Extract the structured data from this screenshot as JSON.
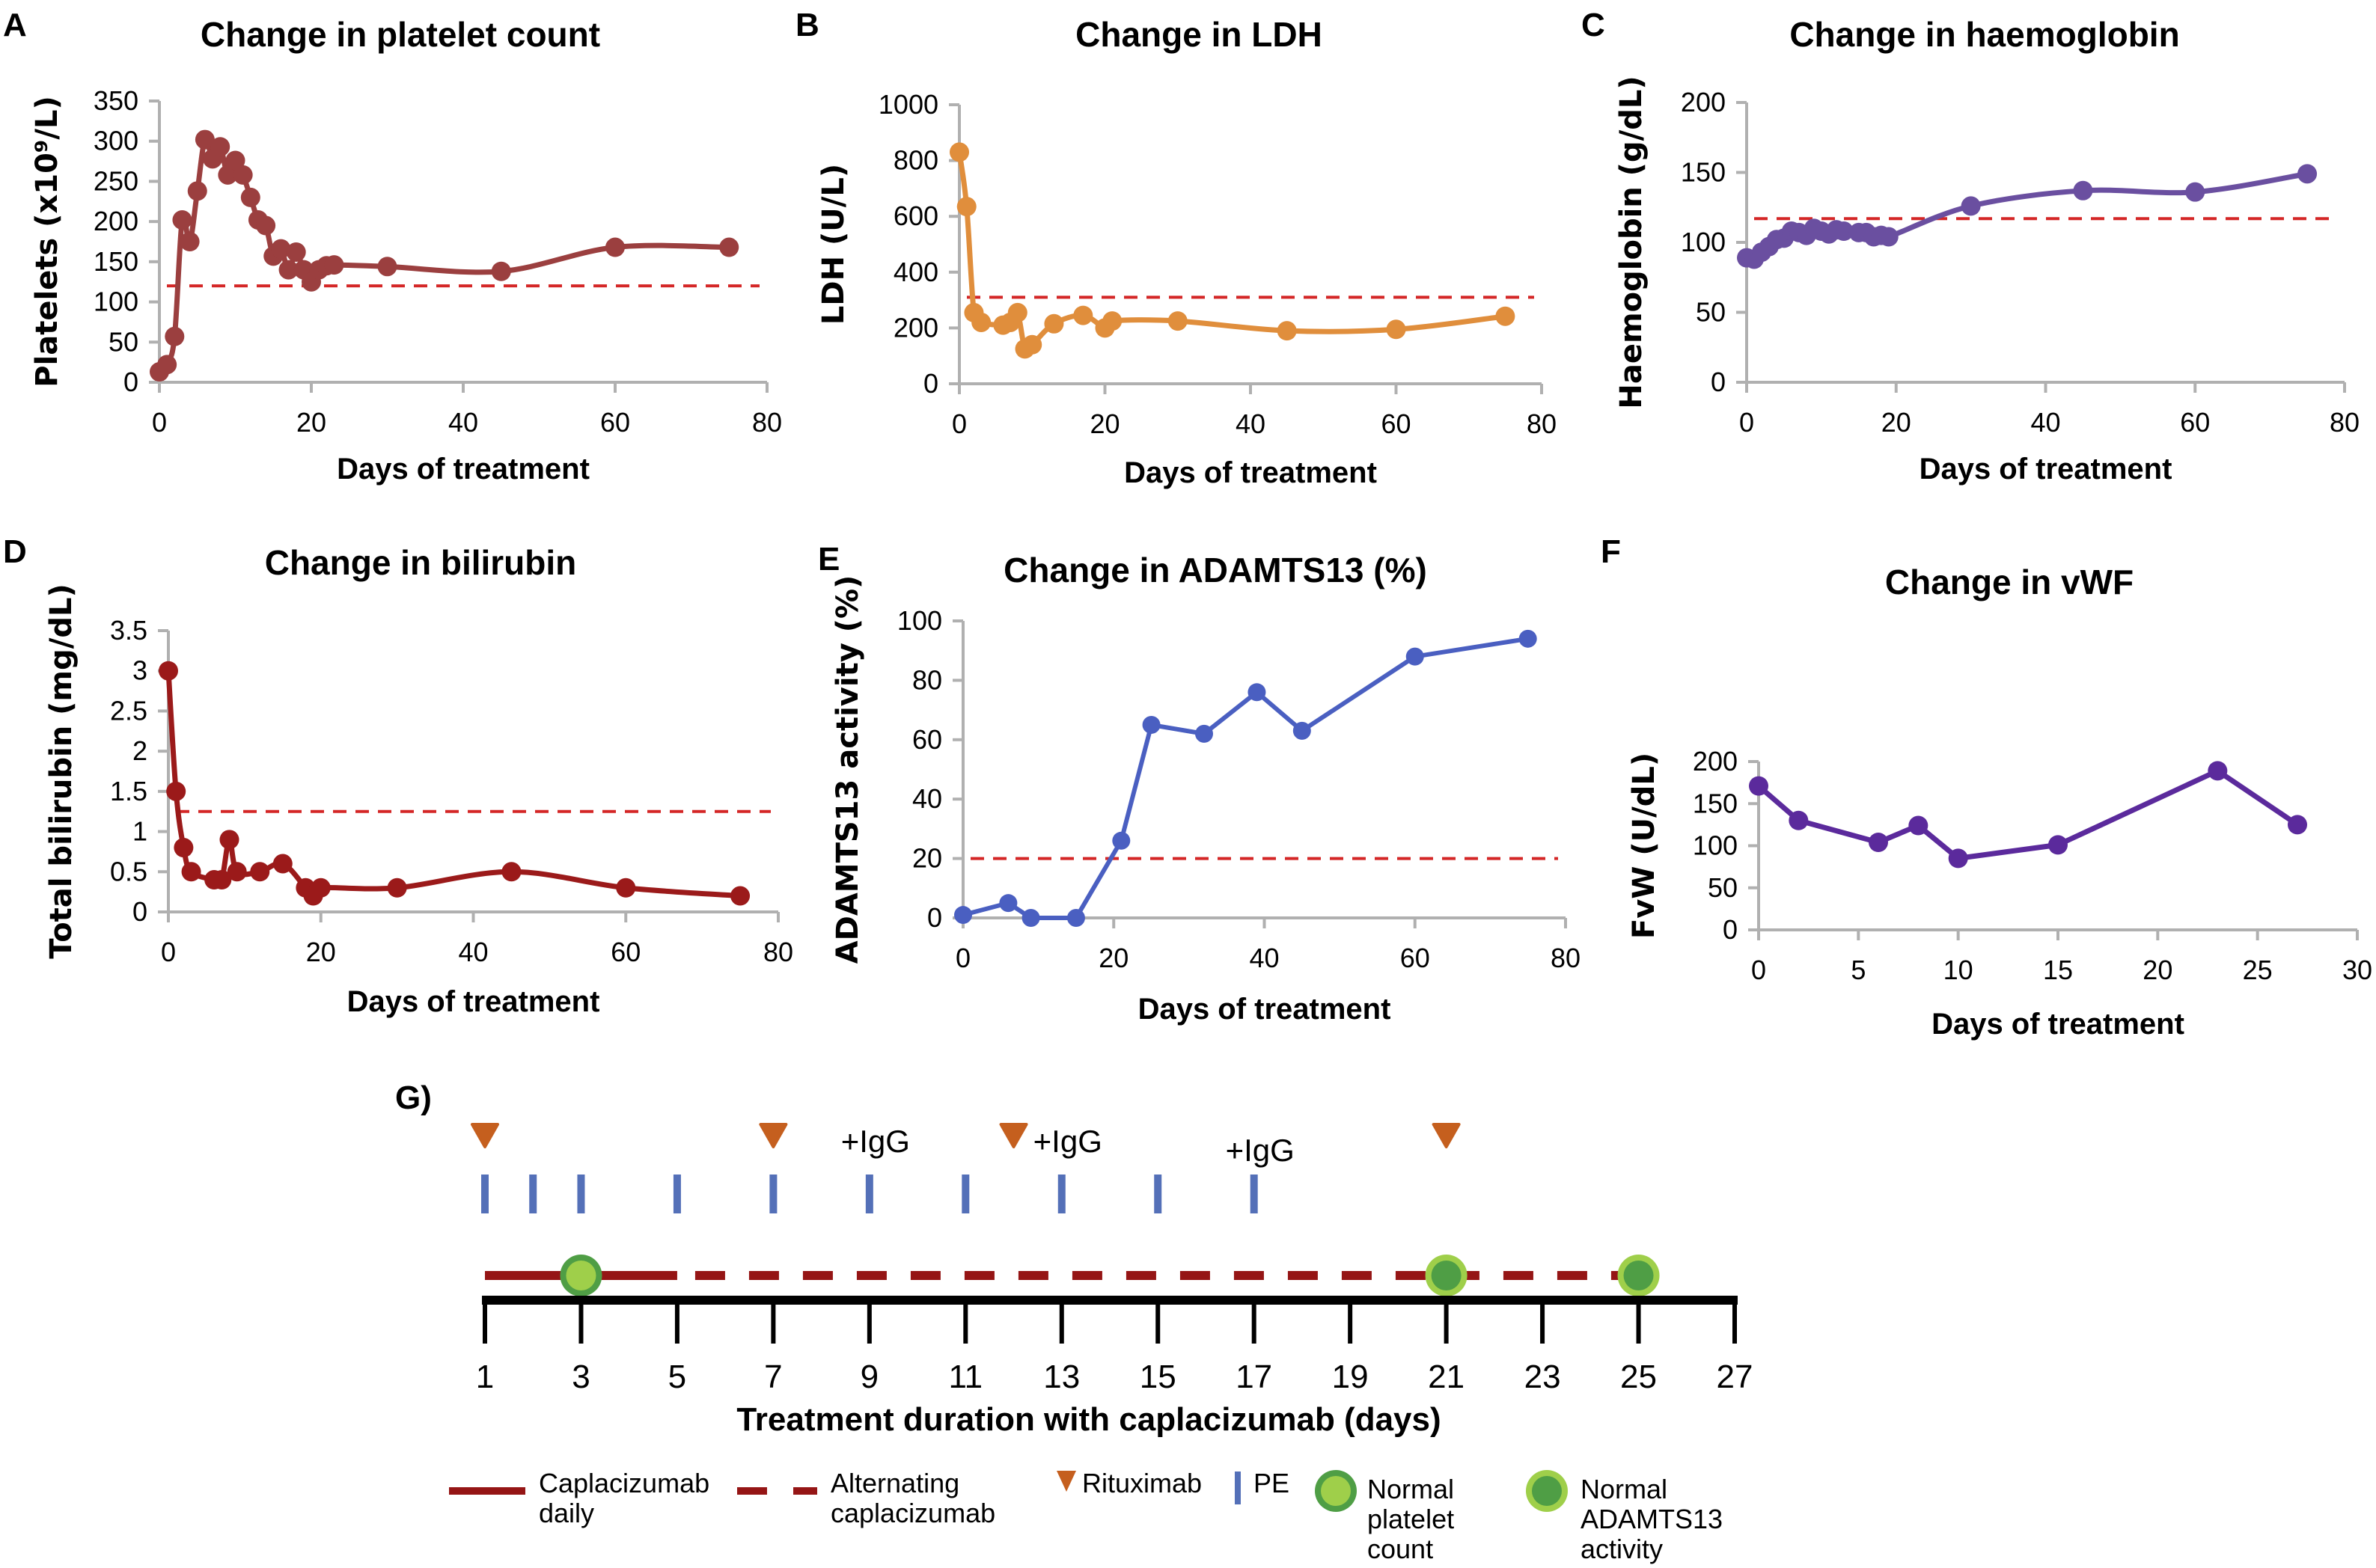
{
  "figure": {
    "panel_g_label": "G)"
  },
  "colors": {
    "platelets": "#9b3f3f",
    "ldh": "#e08e3c",
    "haemoglobin": "#6a4fa0",
    "bilirubin": "#9b1a1a",
    "adamts13": "#4a5fc1",
    "vwf": "#5b2a9c",
    "reference": "#d42626",
    "caplacizumab": "#951515",
    "rituximab": "#c55f1e",
    "pe": "#5470b8",
    "green_dark": "#4f9e45",
    "green_light": "#9fcf4a"
  },
  "chart_data": [
    {
      "id": "A",
      "panel_label": "A",
      "type": "line",
      "title": "Change in platelet count",
      "xlabel": "Days of treatment",
      "ylabel": "Platelets (x10⁹/L)",
      "xlim": [
        0,
        80
      ],
      "ylim": [
        0,
        350
      ],
      "xticks": [
        0,
        20,
        40,
        60,
        80
      ],
      "yticks": [
        0,
        50,
        100,
        150,
        200,
        250,
        300,
        350
      ],
      "grid": false,
      "smooth": true,
      "reference_line": 120,
      "series": [
        {
          "name": "Platelets",
          "x": [
            0,
            1,
            2,
            3,
            4,
            5,
            6,
            7,
            8,
            9,
            10,
            11,
            12,
            13,
            14,
            15,
            16,
            17,
            18,
            19,
            20,
            21,
            22,
            23,
            30,
            45,
            60,
            75
          ],
          "values": [
            13,
            22,
            57,
            202,
            175,
            238,
            302,
            278,
            293,
            258,
            276,
            258,
            230,
            202,
            195,
            157,
            166,
            140,
            162,
            140,
            125,
            140,
            145,
            146,
            144,
            138,
            168,
            168
          ]
        }
      ]
    },
    {
      "id": "B",
      "panel_label": "B",
      "type": "line",
      "title": "Change in LDH",
      "xlabel": "Days of treatment",
      "ylabel": "LDH (U/L)",
      "xlim": [
        0,
        80
      ],
      "ylim": [
        0,
        1000
      ],
      "xticks": [
        0,
        20,
        40,
        60,
        80
      ],
      "yticks": [
        0,
        200,
        400,
        600,
        800,
        1000
      ],
      "grid": false,
      "smooth": true,
      "reference_line": 310,
      "series": [
        {
          "name": "LDH",
          "x": [
            0,
            1,
            2,
            3,
            6,
            7,
            8,
            9,
            10,
            13,
            17,
            20,
            21,
            30,
            45,
            60,
            75
          ],
          "values": [
            830,
            635,
            255,
            220,
            210,
            220,
            255,
            125,
            140,
            215,
            245,
            200,
            225,
            225,
            190,
            195,
            242
          ]
        }
      ]
    },
    {
      "id": "C",
      "panel_label": "C",
      "type": "line",
      "title": "Change in haemoglobin",
      "xlabel": "Days of treatment",
      "ylabel": "Haemoglobin (g/dL)",
      "xlim": [
        0,
        80
      ],
      "ylim": [
        0,
        200
      ],
      "xticks": [
        0,
        20,
        40,
        60,
        80
      ],
      "yticks": [
        0,
        50,
        100,
        150,
        200
      ],
      "grid": false,
      "smooth": true,
      "reference_line": 117,
      "series": [
        {
          "name": "Haemoglobin",
          "x": [
            0,
            1,
            2,
            3,
            4,
            5,
            6,
            7,
            8,
            9,
            10,
            11,
            12,
            13,
            15,
            16,
            17,
            18,
            19,
            30,
            45,
            60,
            75
          ],
          "values": [
            89,
            88,
            93,
            97,
            102,
            103,
            108,
            107,
            105,
            110,
            108,
            106,
            109,
            108,
            107,
            107,
            104,
            105,
            104,
            126,
            137,
            136,
            149
          ]
        }
      ]
    },
    {
      "id": "D",
      "panel_label": "D",
      "type": "line",
      "title": "Change in bilirubin",
      "xlabel": "Days of treatment",
      "ylabel": "Total bilirubin (mg/dL)",
      "xlim": [
        0,
        80
      ],
      "ylim": [
        0,
        3.5
      ],
      "xticks": [
        0,
        20,
        40,
        60,
        80
      ],
      "yticks": [
        0,
        0.5,
        1,
        1.5,
        2,
        2.5,
        3,
        3.5
      ],
      "ytick_labels": [
        "0",
        "0.5",
        "1",
        "1.5",
        "2",
        "2.5",
        "3",
        "3.5"
      ],
      "grid": false,
      "smooth": true,
      "reference_line": 1.25,
      "series": [
        {
          "name": "Total bilirubin",
          "x": [
            0,
            1,
            2,
            3,
            6,
            7,
            8,
            9,
            12,
            15,
            18,
            19,
            20,
            30,
            45,
            60,
            75
          ],
          "values": [
            3.0,
            1.5,
            0.8,
            0.5,
            0.4,
            0.4,
            0.9,
            0.5,
            0.5,
            0.6,
            0.3,
            0.2,
            0.3,
            0.3,
            0.5,
            0.3,
            0.2
          ]
        }
      ]
    },
    {
      "id": "E",
      "panel_label": "E",
      "type": "line",
      "title": "Change in ADAMTS13 (%)",
      "xlabel": "Days of treatment",
      "ylabel": "ADAMTS13 activity (%)",
      "xlim": [
        0,
        80
      ],
      "ylim": [
        0,
        100
      ],
      "xticks": [
        0,
        20,
        40,
        60,
        80
      ],
      "yticks": [
        0,
        20,
        40,
        60,
        80,
        100
      ],
      "grid": false,
      "smooth": false,
      "reference_line": 20,
      "series": [
        {
          "name": "ADAMTS13 activity",
          "x": [
            0,
            6,
            9,
            15,
            21,
            25,
            32,
            39,
            45,
            60,
            75
          ],
          "values": [
            1,
            5,
            0,
            0,
            26,
            65,
            62,
            76,
            63,
            88,
            94
          ]
        }
      ]
    },
    {
      "id": "F",
      "panel_label": "F",
      "type": "line",
      "title": "Change in vWF",
      "xlabel": "Days of treatment",
      "ylabel": "FvW (U/dL)",
      "xlim": [
        0,
        30
      ],
      "ylim": [
        0,
        200
      ],
      "xticks": [
        0,
        5,
        10,
        15,
        20,
        25,
        30
      ],
      "yticks": [
        0,
        50,
        100,
        150,
        200
      ],
      "grid": false,
      "smooth": false,
      "reference_line": null,
      "series": [
        {
          "name": "FvW",
          "x": [
            0,
            2,
            6,
            8,
            10,
            15,
            23,
            27
          ],
          "values": [
            171,
            130,
            104,
            124,
            85,
            101,
            189,
            125
          ]
        }
      ]
    }
  ],
  "timeline": {
    "axis_title": "Treatment duration with caplacizumab (days)",
    "range": [
      1,
      27
    ],
    "ticks": [
      1,
      3,
      5,
      7,
      9,
      11,
      13,
      15,
      17,
      19,
      21,
      23,
      25,
      27
    ],
    "rituximab_days": [
      1,
      7,
      12,
      21
    ],
    "pe_days": [
      1,
      2,
      3,
      5,
      7,
      9,
      11,
      13,
      15,
      17
    ],
    "igg_labels": [
      {
        "day": 9,
        "text": "+IgG"
      },
      {
        "day": 13,
        "text": "+IgG"
      },
      {
        "day": 17,
        "text": "+IgG"
      }
    ],
    "daily_segment": [
      1,
      5
    ],
    "alternating_segment": [
      5,
      25
    ],
    "normal_platelet_days": [
      3
    ],
    "normal_adamts13_days": [
      21,
      25
    ]
  },
  "legend": [
    {
      "key": "caplacizumab-daily",
      "lines": [
        "Caplacizumab",
        "daily"
      ]
    },
    {
      "key": "alternating-caplacizumab",
      "lines": [
        "Alternating",
        "caplacizumab"
      ]
    },
    {
      "key": "rituximab",
      "lines": [
        "Rituximab"
      ]
    },
    {
      "key": "pe",
      "lines": [
        "PE"
      ]
    },
    {
      "key": "normal-platelet-count",
      "lines": [
        "Normal",
        "platelet",
        "count"
      ]
    },
    {
      "key": "normal-adamts13-activity",
      "lines": [
        "Normal",
        "ADAMTS13",
        "activity"
      ]
    }
  ]
}
